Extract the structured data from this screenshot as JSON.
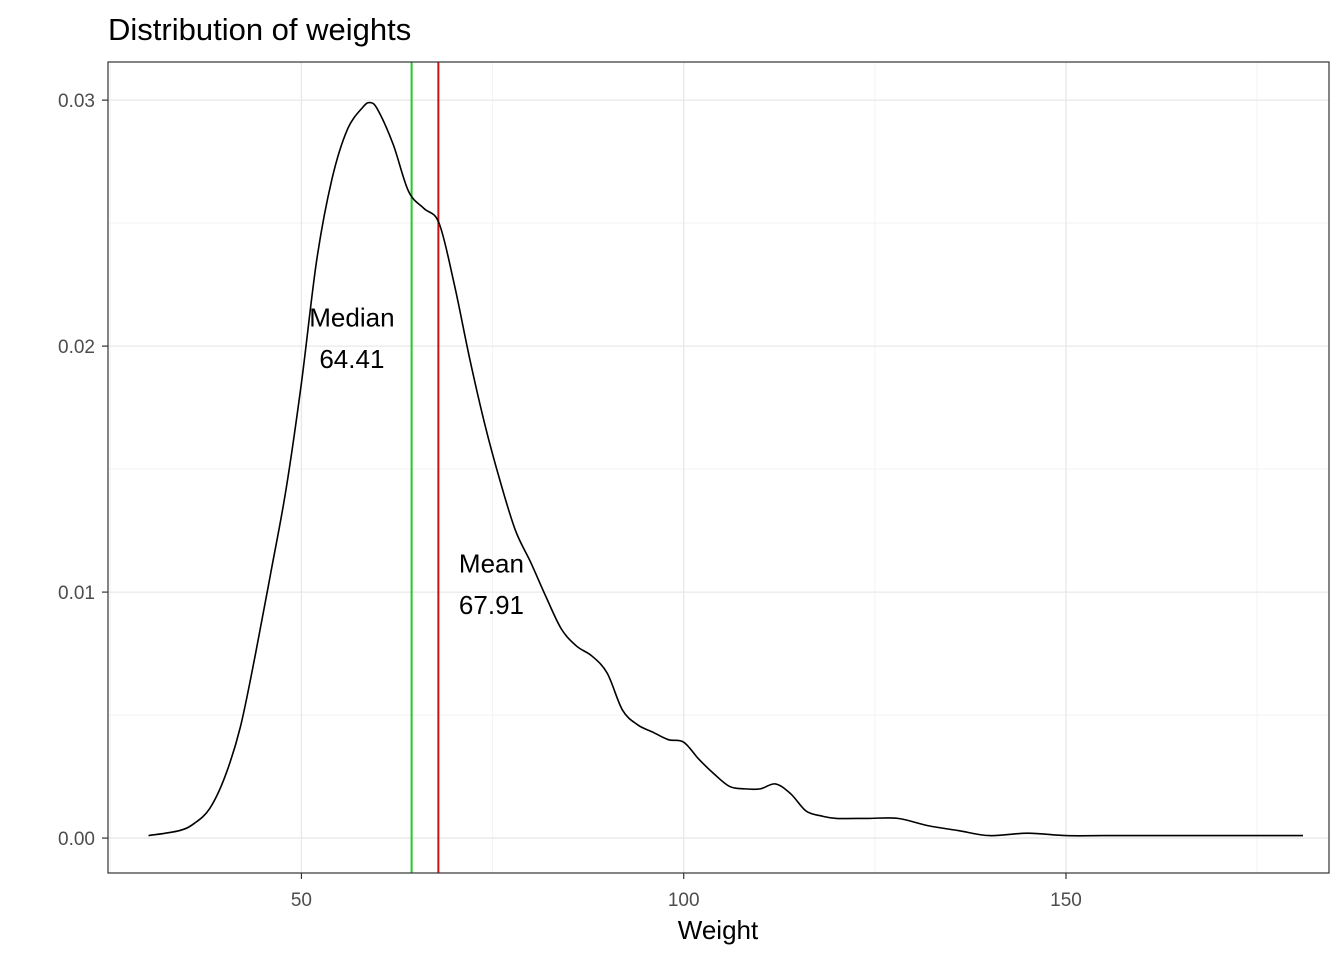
{
  "chart_data": {
    "type": "area",
    "title": "Distribution of weights",
    "xlabel": "Weight",
    "ylabel": "",
    "xlim": [
      24.7,
      184.4
    ],
    "ylim": [
      -0.00142,
      0.03155
    ],
    "x_ticks": [
      50,
      100,
      150
    ],
    "x_tick_labels": [
      "50",
      "100",
      "150"
    ],
    "y_ticks": [
      0.0,
      0.01,
      0.02,
      0.03
    ],
    "y_tick_labels": [
      "0.00",
      "0.01",
      "0.02",
      "0.03"
    ],
    "grid": true,
    "legend": "none",
    "series": [
      {
        "x": [
          30,
          34,
          36,
          38,
          40,
          42,
          44,
          46,
          48,
          50,
          52,
          54,
          56,
          58,
          59,
          60,
          62,
          64,
          66,
          68,
          70,
          72,
          74,
          76,
          78,
          80,
          82,
          84,
          86,
          88,
          90,
          92,
          94,
          96,
          98,
          100,
          102,
          104,
          106,
          108,
          110,
          112,
          114,
          116,
          118,
          120,
          124,
          128,
          132,
          136,
          140,
          145,
          150,
          155,
          160,
          170,
          181
        ],
        "y": [
          0.0001,
          0.0003,
          0.0006,
          0.0012,
          0.0025,
          0.0045,
          0.0075,
          0.0108,
          0.0142,
          0.0185,
          0.0235,
          0.0268,
          0.0288,
          0.0297,
          0.0299,
          0.0296,
          0.0282,
          0.0263,
          0.0256,
          0.025,
          0.0225,
          0.0195,
          0.0168,
          0.0145,
          0.0125,
          0.0112,
          0.0098,
          0.0085,
          0.0078,
          0.0074,
          0.0067,
          0.0052,
          0.0046,
          0.0043,
          0.004,
          0.0039,
          0.0032,
          0.0026,
          0.0021,
          0.002,
          0.002,
          0.0022,
          0.0018,
          0.0011,
          0.0009,
          0.0008,
          0.0008,
          0.0008,
          0.0005,
          0.0003,
          0.0001,
          0.0002,
          0.0001,
          0.0001,
          0.0001,
          0.0001,
          0.0001
        ]
      }
    ],
    "vlines": [
      {
        "label": "Median",
        "value": 64.41,
        "value_label": "64.41",
        "color": "#22cc22"
      },
      {
        "label": "Mean",
        "value": 67.91,
        "value_label": "67.91",
        "color": "#cc1111"
      }
    ],
    "annotations": [
      {
        "key": "median",
        "text": "Median",
        "value_text": "64.41",
        "x": 56.6,
        "y": 0.0208,
        "y2": 0.0191,
        "anchor": "middle"
      },
      {
        "key": "mean",
        "text": "Mean",
        "value_text": "67.91",
        "x": 70.6,
        "y": 0.0108,
        "y2": 0.0091,
        "anchor": "start"
      }
    ]
  }
}
